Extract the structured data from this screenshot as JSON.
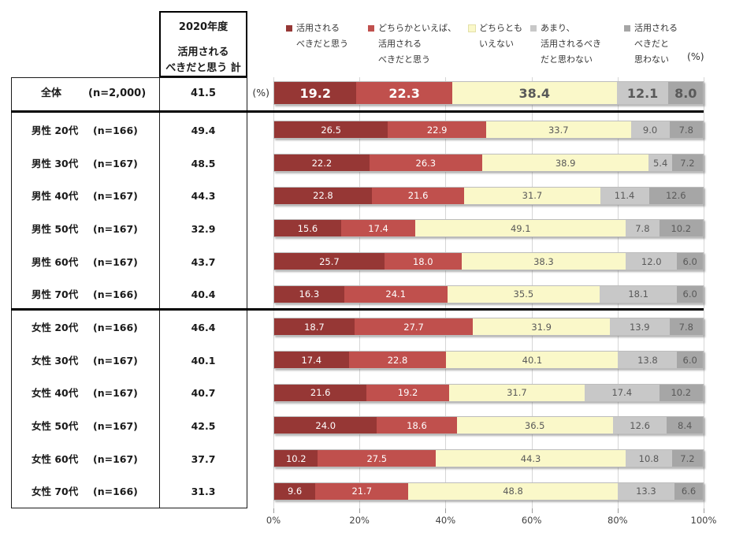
{
  "header": {
    "box_lines": [
      "2020年度",
      "活用される",
      "べきだと思う 計"
    ],
    "percent_label_legend": "(%)",
    "percent_label_axis": "(%)"
  },
  "legend": [
    {
      "name": "活用されるべきだと思う",
      "lines": [
        "活用される",
        "べきだと思う"
      ],
      "color": "#963735"
    },
    {
      "name": "どちらかといえば、活用されるべきだと思う",
      "lines": [
        "どちらかといえば、",
        "活用される",
        "べきだと思う"
      ],
      "color": "#C0504D"
    },
    {
      "name": "どちらともいえない",
      "lines": [
        "どちらとも",
        "いえない"
      ],
      "color": "#FAF8C9"
    },
    {
      "name": "あまり、活用されるべきだと思わない",
      "lines": [
        "あまり、",
        "活用されるべき",
        "だと思わない"
      ],
      "color": "#C8C8C8"
    },
    {
      "name": "活用されるべきだと思わない",
      "lines": [
        "活用される",
        "べきだと",
        "思わない"
      ],
      "color": "#A6A6A6"
    }
  ],
  "chart_data": {
    "type": "bar",
    "stacked": true,
    "orientation": "horizontal",
    "unit": "%",
    "title": "2020年度 活用されるべきだと思う 計",
    "grid": true,
    "legend_position": "top",
    "xlim": [
      0,
      100
    ],
    "x_ticks": [
      "0%",
      "20%",
      "40%",
      "60%",
      "80%",
      "100%"
    ],
    "series": [
      {
        "name": "活用されるべきだと思う",
        "color": "#963735"
      },
      {
        "name": "どちらかといえば、活用されるべきだと思う",
        "color": "#C0504D"
      },
      {
        "name": "どちらともいえない",
        "color": "#FAF8C9"
      },
      {
        "name": "あまり、活用されるべきだと思わない",
        "color": "#C8C8C8"
      },
      {
        "name": "活用されるべきだと思わない",
        "color": "#A6A6A6"
      }
    ],
    "rows": [
      {
        "label": "全体",
        "n": "(n=2,000)",
        "total": 41.5,
        "values": [
          19.2,
          22.3,
          38.4,
          12.1,
          8.0
        ],
        "emphasis": true
      },
      {
        "label": "男性 20代",
        "n": "(n=166)",
        "total": 49.4,
        "values": [
          26.5,
          22.9,
          33.7,
          9.0,
          7.8
        ]
      },
      {
        "label": "男性 30代",
        "n": "(n=167)",
        "total": 48.5,
        "values": [
          22.2,
          26.3,
          38.9,
          5.4,
          7.2
        ]
      },
      {
        "label": "男性 40代",
        "n": "(n=167)",
        "total": 44.3,
        "values": [
          22.8,
          21.6,
          31.7,
          11.4,
          12.6
        ]
      },
      {
        "label": "男性 50代",
        "n": "(n=167)",
        "total": 32.9,
        "values": [
          15.6,
          17.4,
          49.1,
          7.8,
          10.2
        ]
      },
      {
        "label": "男性 60代",
        "n": "(n=167)",
        "total": 43.7,
        "values": [
          25.7,
          18.0,
          38.3,
          12.0,
          6.0
        ]
      },
      {
        "label": "男性 70代",
        "n": "(n=166)",
        "total": 40.4,
        "values": [
          16.3,
          24.1,
          35.5,
          18.1,
          6.0
        ]
      },
      {
        "label": "女性 20代",
        "n": "(n=166)",
        "total": 46.4,
        "values": [
          18.7,
          27.7,
          31.9,
          13.9,
          7.8
        ]
      },
      {
        "label": "女性 30代",
        "n": "(n=167)",
        "total": 40.1,
        "values": [
          17.4,
          22.8,
          40.1,
          13.8,
          6.0
        ]
      },
      {
        "label": "女性 40代",
        "n": "(n=167)",
        "total": 40.7,
        "values": [
          21.6,
          19.2,
          31.7,
          17.4,
          10.2
        ]
      },
      {
        "label": "女性 50代",
        "n": "(n=167)",
        "total": 42.5,
        "values": [
          24.0,
          18.6,
          36.5,
          12.6,
          8.4
        ]
      },
      {
        "label": "女性 60代",
        "n": "(n=167)",
        "total": 37.7,
        "values": [
          10.2,
          27.5,
          44.3,
          10.8,
          7.2
        ]
      },
      {
        "label": "女性 70代",
        "n": "(n=166)",
        "total": 31.3,
        "values": [
          9.6,
          21.7,
          48.8,
          13.3,
          6.6
        ]
      }
    ]
  }
}
